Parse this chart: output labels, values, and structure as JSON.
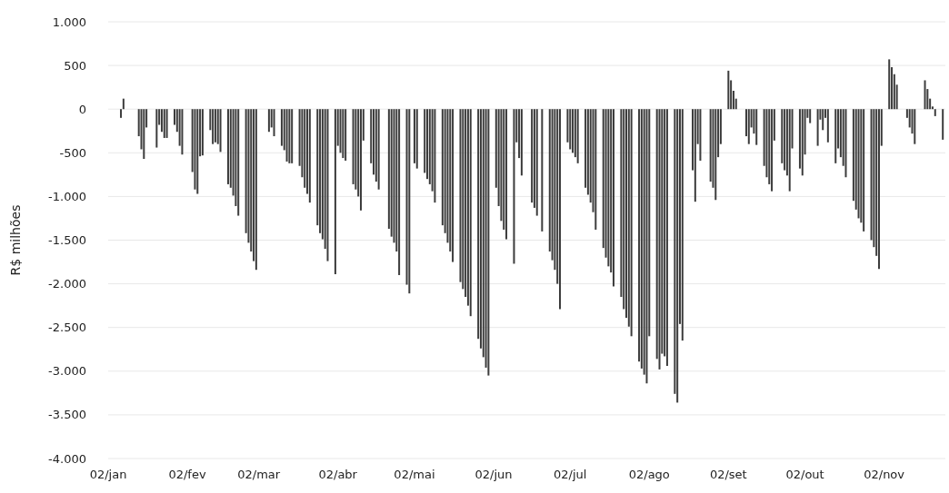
{
  "chart_data": {
    "type": "bar",
    "ylabel": "R$ milhões",
    "color": "#3c3c3c",
    "grid": "y",
    "xlim": [
      "--01-02",
      "--11-26"
    ],
    "xticks": [
      {
        "value": "--01-02",
        "label": "02/jan"
      },
      {
        "value": "--02-02",
        "label": "02/fev"
      },
      {
        "value": "--03-02",
        "label": "02/mar"
      },
      {
        "value": "--04-02",
        "label": "02/abr"
      },
      {
        "value": "--05-02",
        "label": "02/mai"
      },
      {
        "value": "--06-02",
        "label": "02/jun"
      },
      {
        "value": "--07-02",
        "label": "02/jul"
      },
      {
        "value": "--08-02",
        "label": "02/ago"
      },
      {
        "value": "--09-02",
        "label": "02/set"
      },
      {
        "value": "--10-02",
        "label": "02/out"
      },
      {
        "value": "--11-02",
        "label": "02/nov"
      }
    ],
    "ylim": [
      -4000,
      1000
    ],
    "yticks": [
      {
        "value": -4000,
        "label": "-4.000"
      },
      {
        "value": -3500,
        "label": "-3.500"
      },
      {
        "value": -3000,
        "label": "-3.000"
      },
      {
        "value": -2500,
        "label": "-2.500"
      },
      {
        "value": -2000,
        "label": "-2.000"
      },
      {
        "value": -1500,
        "label": "-1.500"
      },
      {
        "value": -1000,
        "label": "-1.000"
      },
      -500,
      0,
      500,
      {
        "value": 1000,
        "label": "1.000"
      }
    ],
    "x": [
      "--01-07",
      "--01-08",
      "--01-14",
      "--01-15",
      "--01-16",
      "--01-17",
      "--01-21",
      "--01-22",
      "--01-23",
      "--01-24",
      "--01-25",
      "--01-28",
      "--01-29",
      "--01-30",
      "--01-31",
      "--02-04",
      "--02-05",
      "--02-06",
      "--02-07",
      "--02-08",
      "--02-11",
      "--02-12",
      "--02-13",
      "--02-14",
      "--02-15",
      "--02-18",
      "--02-19",
      "--02-20",
      "--02-21",
      "--02-22",
      "--02-25",
      "--02-26",
      "--02-27",
      "--02-28",
      "--03-01",
      "--03-06",
      "--03-07",
      "--03-08",
      "--03-11",
      "--03-12",
      "--03-13",
      "--03-14",
      "--03-15",
      "--03-18",
      "--03-19",
      "--03-20",
      "--03-21",
      "--03-22",
      "--03-25",
      "--03-26",
      "--03-27",
      "--03-28",
      "--03-29",
      "--04-01",
      "--04-02",
      "--04-03",
      "--04-04",
      "--04-05",
      "--04-08",
      "--04-09",
      "--04-10",
      "--04-11",
      "--04-12",
      "--04-15",
      "--04-16",
      "--04-17",
      "--04-18",
      "--04-22",
      "--04-23",
      "--04-24",
      "--04-25",
      "--04-26",
      "--04-29",
      "--04-30",
      "--05-02",
      "--05-03",
      "--05-06",
      "--05-07",
      "--05-08",
      "--05-09",
      "--05-10",
      "--05-13",
      "--05-14",
      "--05-15",
      "--05-16",
      "--05-17",
      "--05-20",
      "--05-21",
      "--05-22",
      "--05-23",
      "--05-24",
      "--05-27",
      "--05-28",
      "--05-29",
      "--05-30",
      "--05-31",
      "--06-03",
      "--06-04",
      "--06-05",
      "--06-06",
      "--06-07",
      "--06-10",
      "--06-11",
      "--06-12",
      "--06-13",
      "--06-17",
      "--06-18",
      "--06-19",
      "--06-21",
      "--06-24",
      "--06-25",
      "--06-26",
      "--06-27",
      "--06-28",
      "--07-01",
      "--07-02",
      "--07-03",
      "--07-04",
      "--07-05",
      "--07-08",
      "--07-09",
      "--07-10",
      "--07-11",
      "--07-12",
      "--07-15",
      "--07-16",
      "--07-17",
      "--07-18",
      "--07-19",
      "--07-22",
      "--07-23",
      "--07-24",
      "--07-25",
      "--07-26",
      "--07-29",
      "--07-30",
      "--07-31",
      "--08-01",
      "--08-02",
      "--08-05",
      "--08-06",
      "--08-07",
      "--08-08",
      "--08-09",
      "--08-12",
      "--08-13",
      "--08-14",
      "--08-15",
      "--08-19",
      "--08-20",
      "--08-21",
      "--08-22",
      "--08-26",
      "--08-27",
      "--08-28",
      "--08-29",
      "--08-30",
      "--09-02",
      "--09-03",
      "--09-04",
      "--09-05",
      "--09-09",
      "--09-10",
      "--09-11",
      "--09-12",
      "--09-13",
      "--09-16",
      "--09-17",
      "--09-18",
      "--09-19",
      "--09-20",
      "--09-23",
      "--09-24",
      "--09-25",
      "--09-26",
      "--09-27",
      "--09-30",
      "--10-01",
      "--10-02",
      "--10-03",
      "--10-04",
      "--10-07",
      "--10-08",
      "--10-09",
      "--10-10",
      "--10-11",
      "--10-14",
      "--10-15",
      "--10-16",
      "--10-17",
      "--10-18",
      "--10-21",
      "--10-22",
      "--10-23",
      "--10-24",
      "--10-25",
      "--10-28",
      "--10-29",
      "--10-30",
      "--10-31",
      "--11-01",
      "--11-04",
      "--11-05",
      "--11-06",
      "--11-07",
      "--11-11",
      "--11-12",
      "--11-13",
      "--11-14",
      "--11-18",
      "--11-19",
      "--11-20",
      "--11-21",
      "--11-22",
      "--11-25"
    ],
    "values": [
      -100,
      120,
      -310,
      -460,
      -570,
      -210,
      -440,
      -180,
      -260,
      -330,
      -330,
      -180,
      -260,
      -420,
      -520,
      -720,
      -920,
      -970,
      -540,
      -530,
      -240,
      -400,
      -380,
      -400,
      -490,
      -860,
      -900,
      -990,
      -1110,
      -1220,
      -1420,
      -1530,
      -1630,
      -1740,
      -1840,
      -260,
      -210,
      -310,
      -420,
      -470,
      -600,
      -620,
      -620,
      -650,
      -780,
      -900,
      -970,
      -1070,
      -1330,
      -1420,
      -1490,
      -1600,
      -1740,
      -1890,
      -420,
      -500,
      -560,
      -590,
      -860,
      -920,
      -1000,
      -1160,
      -360,
      -620,
      -750,
      -830,
      -920,
      -1370,
      -1460,
      -1530,
      -1630,
      -1900,
      -2010,
      -2110,
      -620,
      -680,
      -730,
      -800,
      -860,
      -940,
      -1070,
      -1330,
      -1420,
      -1530,
      -1630,
      -1750,
      -1980,
      -2060,
      -2150,
      -2250,
      -2370,
      -2630,
      -2740,
      -2840,
      -2960,
      -3050,
      -900,
      -1110,
      -1280,
      -1380,
      -1490,
      -1770,
      -380,
      -560,
      -760,
      -1070,
      -1130,
      -1220,
      -1400,
      -1630,
      -1730,
      -1840,
      -2000,
      -2290,
      -380,
      -460,
      -500,
      -550,
      -620,
      -900,
      -980,
      -1070,
      -1180,
      -1380,
      -1590,
      -1700,
      -1800,
      -1870,
      -2030,
      -2150,
      -2290,
      -2390,
      -2490,
      -2600,
      -2890,
      -2970,
      -3040,
      -3140,
      -2600,
      -2860,
      -2980,
      -2800,
      -2830,
      -2940,
      -3260,
      -3360,
      -2460,
      -2650,
      -700,
      -1060,
      -400,
      -590,
      -830,
      -900,
      -1040,
      -550,
      -400,
      440,
      330,
      210,
      120,
      -310,
      -400,
      -210,
      -280,
      -410,
      -650,
      -780,
      -860,
      -940,
      -360,
      -620,
      -700,
      -760,
      -940,
      -450,
      -680,
      -760,
      -520,
      -100,
      -160,
      -420,
      -120,
      -240,
      -100,
      -380,
      -620,
      -450,
      -550,
      -650,
      -780,
      -1050,
      -1150,
      -1250,
      -1300,
      -1400,
      -1500,
      -1580,
      -1680,
      -1830,
      -420,
      570,
      480,
      400,
      280,
      -100,
      -210,
      -280,
      -400,
      330,
      230,
      120,
      30,
      -80,
      -350
    ]
  }
}
